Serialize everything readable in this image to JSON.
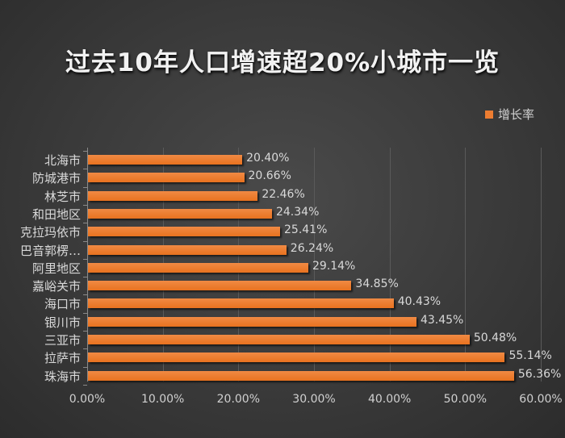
{
  "title": "过去10年人口增速超20%小城市一览",
  "legend": {
    "label": "增长率",
    "color": "#ed7d31"
  },
  "chart_data": {
    "type": "bar",
    "orientation": "horizontal",
    "title": "过去10年人口增速超20%小城市一览",
    "xlabel": "",
    "ylabel": "",
    "xlim": [
      0,
      60
    ],
    "grid": true,
    "legend_position": "top-right",
    "x_ticks": [
      "0.00%",
      "10.00%",
      "20.00%",
      "30.00%",
      "40.00%",
      "50.00%",
      "60.00%"
    ],
    "categories": [
      "北海市",
      "防城港市",
      "林芝市",
      "和田地区",
      "克拉玛依市",
      "巴音郭楞…",
      "阿里地区",
      "嘉峪关市",
      "海口市",
      "银川市",
      "三亚市",
      "拉萨市",
      "珠海市"
    ],
    "series": [
      {
        "name": "增长率",
        "color": "#ed7d31",
        "values": [
          20.4,
          20.66,
          22.46,
          24.34,
          25.41,
          26.24,
          29.14,
          34.85,
          40.43,
          43.45,
          50.48,
          55.14,
          56.36
        ],
        "labels": [
          "20.40%",
          "20.66%",
          "22.46%",
          "24.34%",
          "25.41%",
          "26.24%",
          "29.14%",
          "34.85%",
          "40.43%",
          "43.45%",
          "50.48%",
          "55.14%",
          "56.36%"
        ]
      }
    ]
  }
}
